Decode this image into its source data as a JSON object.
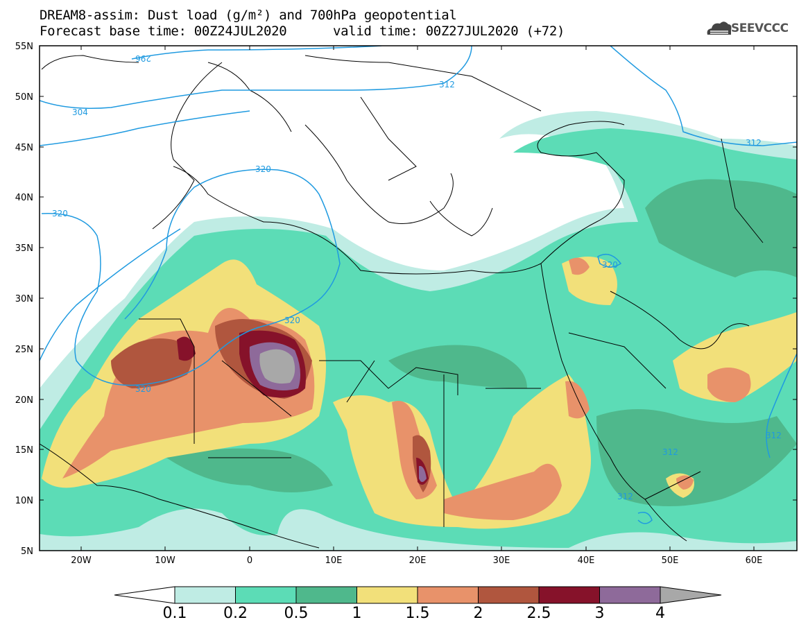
{
  "title": {
    "line1": "DREAM8-assim: Dust load (g/m²) and 700hPa geopotential",
    "line2_left": "Forecast base time: 00Z24JUL2020",
    "line2_right": "valid time: 00Z27JUL2020 (+72)"
  },
  "logo": {
    "icon": "cloud-icon",
    "text": "SEEVCCC"
  },
  "map": {
    "lat_labels": [
      "55N",
      "50N",
      "45N",
      "40N",
      "35N",
      "30N",
      "25N",
      "20N",
      "15N",
      "10N",
      "5N"
    ],
    "lon_labels": [
      "20W",
      "10W",
      "0",
      "10E",
      "20E",
      "30E",
      "40E",
      "50E",
      "60E"
    ],
    "contour_labels": [
      "296",
      "304",
      "312",
      "320",
      "320",
      "320",
      "320",
      "320",
      "312",
      "312",
      "312",
      "312"
    ]
  },
  "colorbar": {
    "ticks": [
      "0.1",
      "0.2",
      "0.5",
      "1",
      "1.5",
      "2",
      "2.5",
      "3",
      "4"
    ],
    "colors": [
      "#bfece4",
      "#5cdcb6",
      "#4fb88c",
      "#f2e07a",
      "#e8926a",
      "#b0563e",
      "#86122a",
      "#8e6a9a",
      "#a8a8a8"
    ]
  }
}
